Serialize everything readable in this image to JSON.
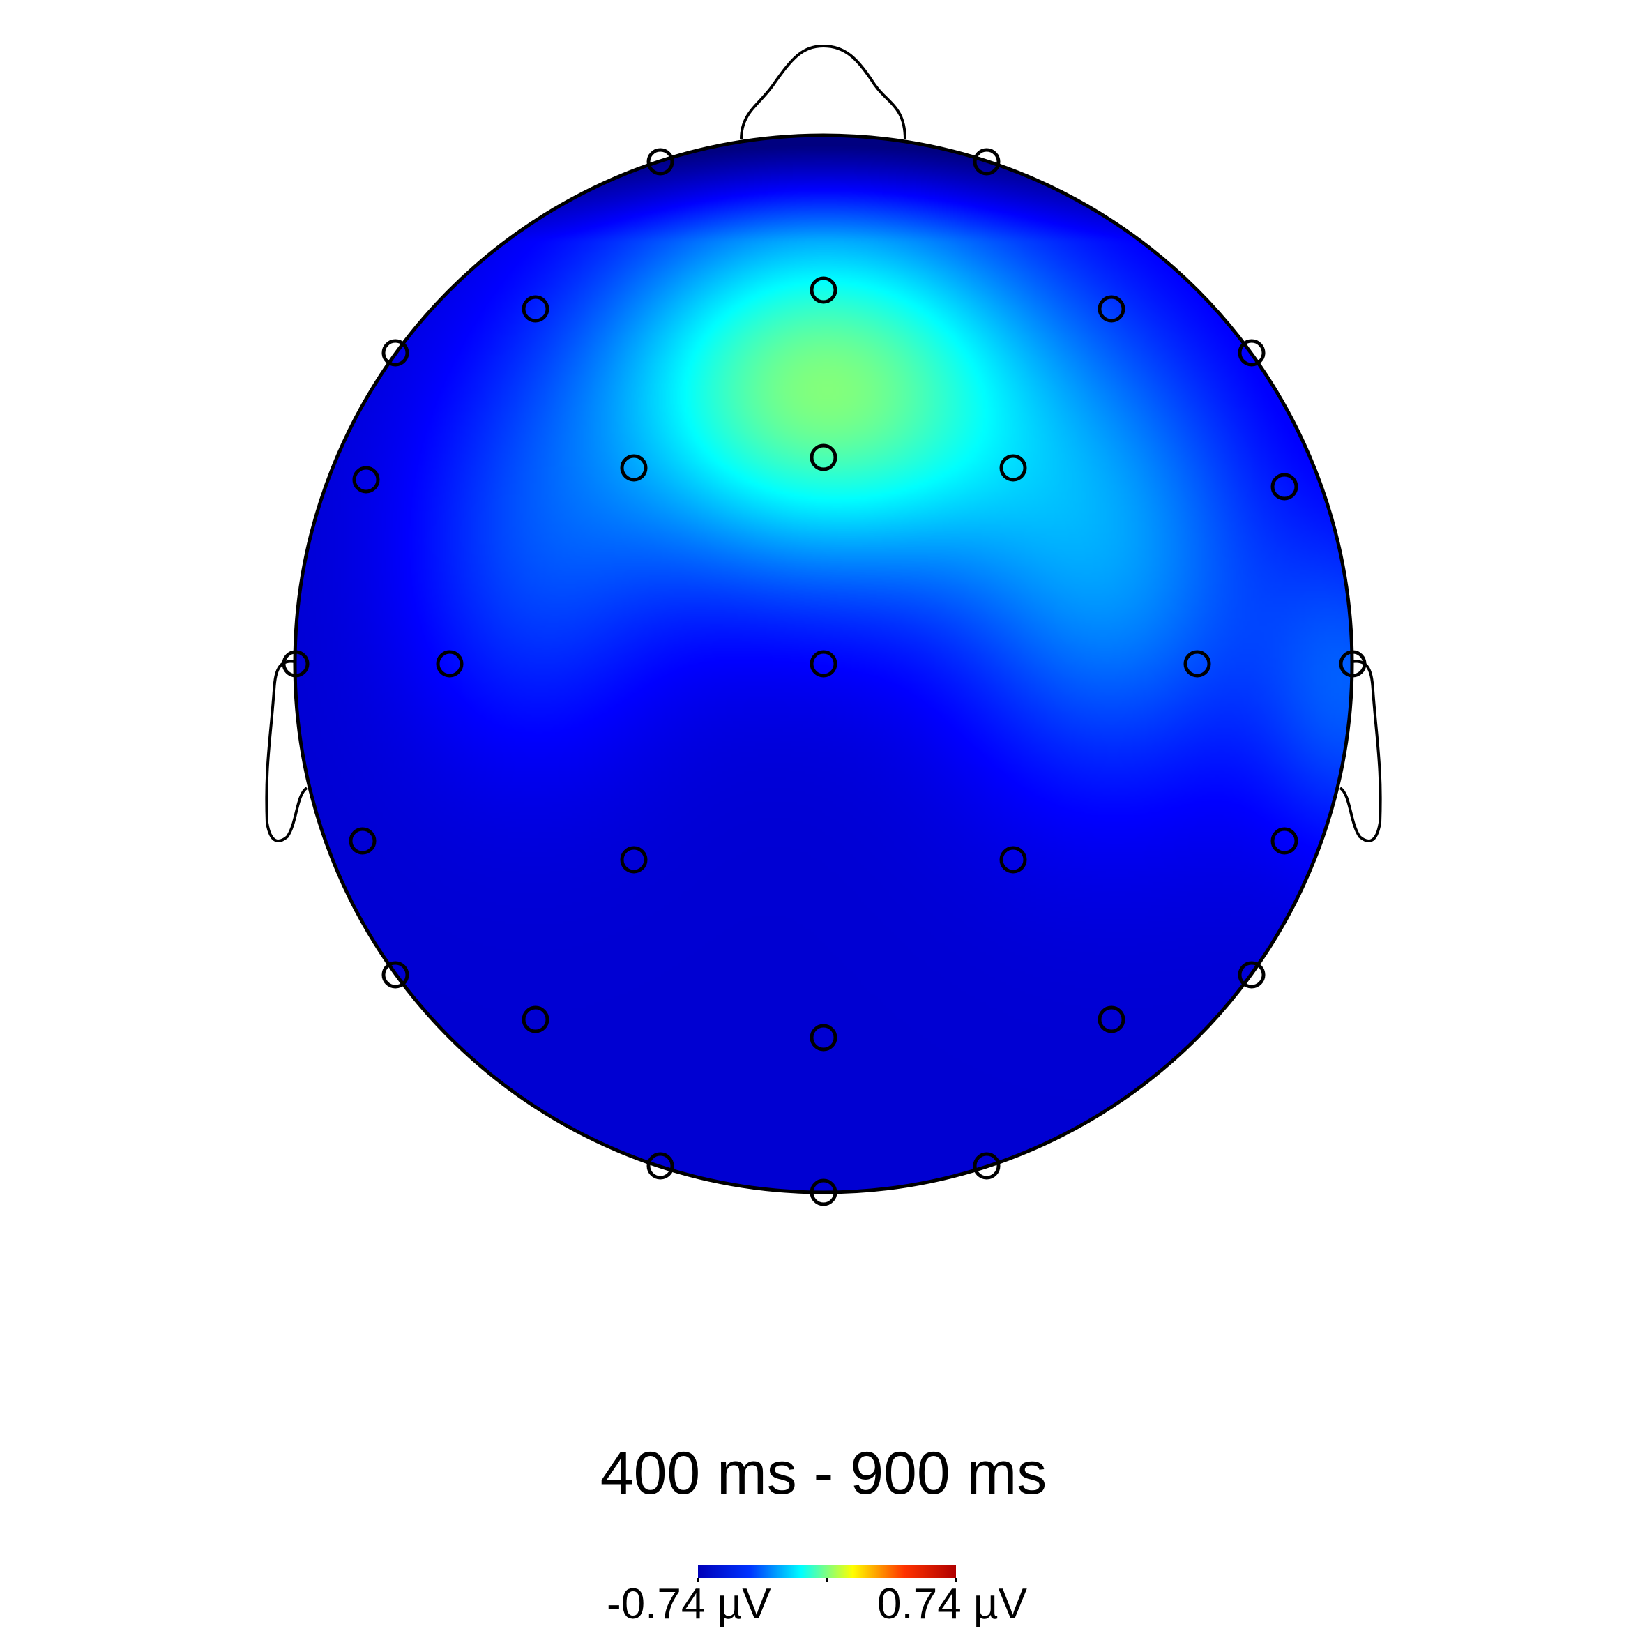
{
  "title": "400 ms - 900 ms",
  "colorbar": {
    "min_label": "-0.74 µV",
    "max_label": "0.74 µV",
    "min": -0.74,
    "max": 0.74,
    "colormap": "jet",
    "stops": [
      "#0000b8",
      "#0033ff",
      "#00ffff",
      "#ffff00",
      "#ff3300",
      "#b00000"
    ]
  },
  "field": {
    "baseline_uV": -0.62,
    "sources": [
      {
        "location": "frontal",
        "amplitude_uV": 0.62
      },
      {
        "location": "left-temporal",
        "amplitude_uV": 0.14
      },
      {
        "location": "right-temporal",
        "amplitude_uV": 0.26
      },
      {
        "location": "right-edge",
        "amplitude_uV": 0.18
      }
    ]
  },
  "electrode_count": 32,
  "colors": {
    "outline": "#000000",
    "background": "#ffffff"
  }
}
